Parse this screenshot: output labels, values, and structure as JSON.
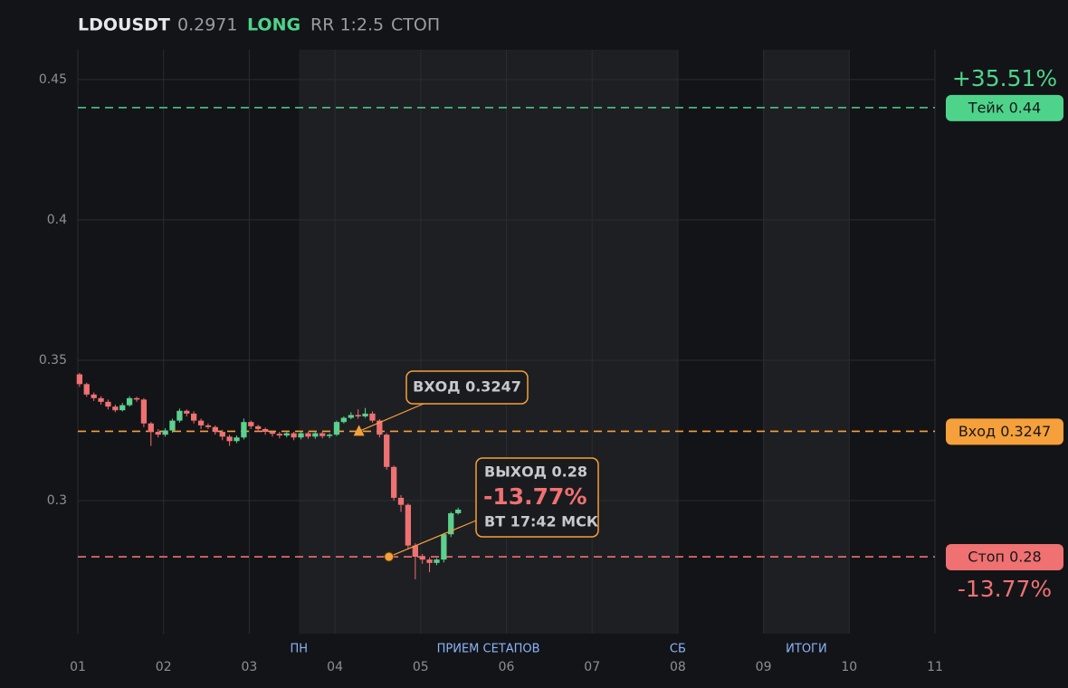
{
  "chart_data": {
    "type": "candlestick",
    "header": {
      "symbol": "LDOUSDT",
      "price": "0.2971",
      "side": "LONG",
      "rr": "RR 1:2.5",
      "status": "СТОП"
    },
    "x": [
      1.02,
      1.103,
      1.187,
      1.27,
      1.353,
      1.437,
      1.52,
      1.603,
      1.687,
      1.77,
      1.853,
      1.937,
      2.02,
      2.103,
      2.187,
      2.27,
      2.353,
      2.437,
      2.52,
      2.603,
      2.687,
      2.77,
      2.853,
      2.937,
      3.02,
      3.103,
      3.187,
      3.27,
      3.353,
      3.437,
      3.52,
      3.603,
      3.687,
      3.77,
      3.853,
      3.937,
      4.02,
      4.103,
      4.187,
      4.27,
      4.353,
      4.437,
      4.52,
      4.603,
      4.687,
      4.77,
      4.853,
      4.937,
      5.02,
      5.103,
      5.187,
      5.27,
      5.353,
      5.437
    ],
    "open": [
      0.345,
      0.3415,
      0.3378,
      0.3365,
      0.3352,
      0.3335,
      0.3322,
      0.334,
      0.3365,
      0.336,
      0.3275,
      0.3245,
      0.3235,
      0.325,
      0.3285,
      0.332,
      0.331,
      0.3285,
      0.3268,
      0.3262,
      0.3245,
      0.3228,
      0.3212,
      0.3225,
      0.328,
      0.3265,
      0.3255,
      0.3245,
      0.3238,
      0.3232,
      0.324,
      0.3225,
      0.324,
      0.3228,
      0.324,
      0.323,
      0.3235,
      0.328,
      0.3295,
      0.3305,
      0.33,
      0.331,
      0.3285,
      0.3235,
      0.312,
      0.301,
      0.2985,
      0.284,
      0.28,
      0.279,
      0.2778,
      0.279,
      0.288,
      0.2955
    ],
    "high": [
      0.3455,
      0.342,
      0.3385,
      0.3372,
      0.336,
      0.3342,
      0.3348,
      0.3372,
      0.337,
      0.3365,
      0.328,
      0.3255,
      0.3258,
      0.3292,
      0.3328,
      0.3325,
      0.3318,
      0.3292,
      0.3275,
      0.3268,
      0.3252,
      0.3235,
      0.3232,
      0.3292,
      0.3285,
      0.327,
      0.326,
      0.325,
      0.3245,
      0.3245,
      0.3245,
      0.3245,
      0.3246,
      0.3245,
      0.3245,
      0.324,
      0.3285,
      0.33,
      0.3315,
      0.3325,
      0.333,
      0.3318,
      0.329,
      0.324,
      0.3125,
      0.302,
      0.299,
      0.2848,
      0.281,
      0.2798,
      0.2795,
      0.2885,
      0.296,
      0.2975
    ],
    "low": [
      0.3405,
      0.337,
      0.3355,
      0.3342,
      0.3325,
      0.3315,
      0.3318,
      0.3335,
      0.3352,
      0.3262,
      0.3195,
      0.3225,
      0.3228,
      0.3242,
      0.3278,
      0.33,
      0.3275,
      0.3255,
      0.3255,
      0.3235,
      0.3215,
      0.3195,
      0.3205,
      0.3218,
      0.3255,
      0.3245,
      0.3235,
      0.3228,
      0.3222,
      0.3225,
      0.3215,
      0.3218,
      0.322,
      0.322,
      0.3222,
      0.3222,
      0.323,
      0.3275,
      0.329,
      0.3292,
      0.3295,
      0.3278,
      0.3225,
      0.311,
      0.3,
      0.296,
      0.283,
      0.272,
      0.2775,
      0.2745,
      0.277,
      0.278,
      0.287,
      0.295
    ],
    "close": [
      0.3415,
      0.3378,
      0.3365,
      0.3352,
      0.3335,
      0.3322,
      0.334,
      0.3365,
      0.336,
      0.3275,
      0.3245,
      0.3235,
      0.325,
      0.3285,
      0.332,
      0.331,
      0.3285,
      0.3268,
      0.3262,
      0.3245,
      0.3228,
      0.3212,
      0.3225,
      0.328,
      0.3265,
      0.3255,
      0.3245,
      0.3238,
      0.3232,
      0.324,
      0.3225,
      0.324,
      0.3228,
      0.324,
      0.323,
      0.3235,
      0.328,
      0.3295,
      0.3305,
      0.33,
      0.331,
      0.3285,
      0.3235,
      0.312,
      0.301,
      0.2985,
      0.284,
      0.28,
      0.279,
      0.2778,
      0.279,
      0.288,
      0.2955,
      0.2968
    ],
    "up_color": "#5cd08e",
    "down_color": "#ef7171",
    "ylim": [
      0.2526,
      0.4606
    ],
    "yticks": [
      0.3,
      0.35,
      0.4,
      0.45
    ],
    "xlim": [
      1,
      11
    ],
    "xticks": [
      {
        "value": 1,
        "label": "01"
      },
      {
        "value": 2,
        "label": "02"
      },
      {
        "value": 3,
        "label": "03"
      },
      {
        "value": 4,
        "label": "04"
      },
      {
        "value": 5,
        "label": "05"
      },
      {
        "value": 6,
        "label": "06"
      },
      {
        "value": 7,
        "label": "07"
      },
      {
        "value": 8,
        "label": "08"
      },
      {
        "value": 9,
        "label": "09"
      },
      {
        "value": 10,
        "label": "10"
      },
      {
        "value": 11,
        "label": "11"
      }
    ],
    "grid": true,
    "zones": [
      {
        "start": 3.58,
        "end": 8
      },
      {
        "start": 9,
        "end": 10
      }
    ],
    "session_labels": [
      {
        "x": 3.58,
        "text": "ПН"
      },
      {
        "x": 5.79,
        "text": "ПРИЕМ СЕТАПОВ"
      },
      {
        "x": 8,
        "text": "СБ"
      },
      {
        "x": 9.5,
        "text": "ИТОГИ"
      }
    ],
    "levels": [
      {
        "label": "Тейк 0.44",
        "value": 0.44,
        "color": "#4ed48a"
      },
      {
        "label": "Вход 0.3247",
        "value": 0.3247,
        "color": "#f5a03a"
      },
      {
        "label": "Стоп 0.28",
        "value": 0.28,
        "color": "#ef7171"
      }
    ],
    "take_percent": "+35.51%",
    "stop_percent": "-13.77%",
    "entry_marker": {
      "x": 4.28,
      "y": 0.3247,
      "label": "ВХОД 0.3247"
    },
    "exit_marker": {
      "x": 4.63,
      "y": 0.28,
      "label": "ВЫХОД 0.28",
      "result": "-13.77%",
      "time": "ВТ 17:42 МСК"
    }
  }
}
